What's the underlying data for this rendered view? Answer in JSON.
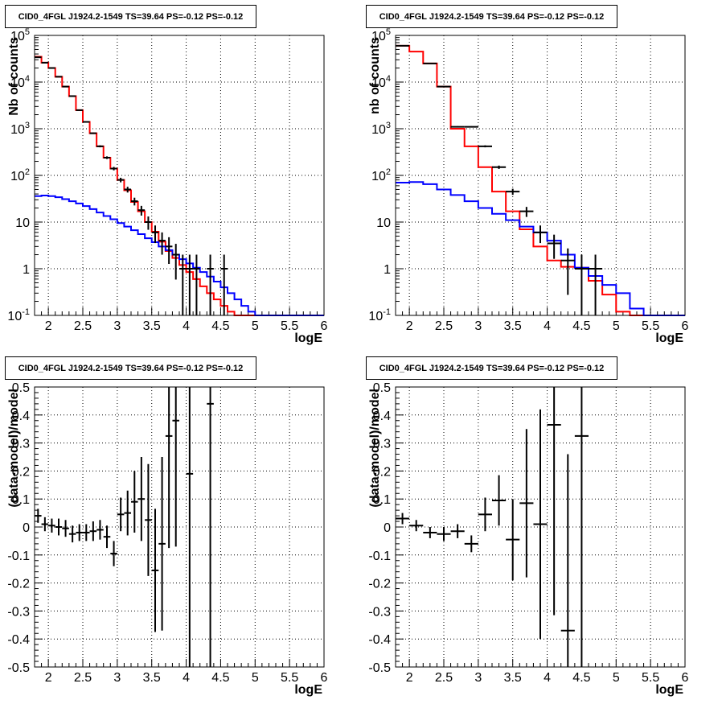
{
  "pad_title": "CID0_4FGL J1924.2-1549 TS=39.64 PS=-0.12 PS=-0.12",
  "colors": {
    "model_total": "#ff0000",
    "model_background": "#0000ff",
    "data": "#000000"
  },
  "chart_data": [
    {
      "id": "counts_fine",
      "type": "line",
      "title": "CID0_4FGL J1924.2-1549 TS=39.64 PS=-0.12 PS=-0.12",
      "xlabel": "logE",
      "ylabel": "Nb of counts",
      "xlim": [
        1.8,
        6.0
      ],
      "ylim": [
        0.1,
        100000
      ],
      "log_y": true,
      "grid": true,
      "x_ticks": [
        "2",
        "2.5",
        "3",
        "3.5",
        "4",
        "4.5",
        "5",
        "5.5",
        "6"
      ],
      "y_ticks": [
        "10^-1",
        "1",
        "10",
        "10^2",
        "10^3",
        "10^4",
        "10^5"
      ],
      "bin_edges": [
        1.8,
        1.9,
        2.0,
        2.1,
        2.2,
        2.3,
        2.4,
        2.5,
        2.6,
        2.7,
        2.8,
        2.9,
        3.0,
        3.1,
        3.2,
        3.3,
        3.4,
        3.5,
        3.6,
        3.7,
        3.8,
        3.9,
        4.0,
        4.1,
        4.2,
        4.3,
        4.4,
        4.5,
        4.6,
        4.7,
        4.8,
        4.9,
        5.0,
        5.1,
        5.2,
        5.3,
        5.4,
        5.5,
        5.6,
        5.7,
        5.8,
        5.9,
        6.0
      ],
      "series": [
        {
          "name": "",
          "role": "total",
          "values": [
            35000,
            26000,
            20000,
            13000,
            8000,
            5000,
            2500,
            1400,
            800,
            420,
            240,
            140,
            80,
            48,
            27,
            17,
            10,
            6.2,
            3.8,
            2.4,
            1.7,
            1.2,
            0.85,
            0.6,
            0.42,
            0.3,
            0.22,
            0.16,
            0.12,
            0.1,
            0.1,
            0.1,
            0.1,
            0.1,
            0.1,
            0.1,
            0.1,
            0.1,
            0.1,
            0.1,
            0.1,
            0.1
          ]
        },
        {
          "name": "",
          "role": "background",
          "values": [
            36,
            37,
            36,
            34,
            31,
            28,
            25,
            22,
            19,
            16,
            13.5,
            11.5,
            9.5,
            8,
            6.7,
            5.5,
            4.5,
            3.7,
            3,
            2.5,
            2,
            1.6,
            1.3,
            1.05,
            0.85,
            0.68,
            0.53,
            0.4,
            0.3,
            0.22,
            0.16,
            0.12,
            0.1,
            0.1,
            0.1,
            0.1,
            0.1,
            0.1,
            0.1,
            0.1,
            0.1,
            0.1
          ]
        }
      ],
      "points": [
        {
          "x": 1.85,
          "y": 34000
        },
        {
          "x": 1.95,
          "y": 26000
        },
        {
          "x": 2.05,
          "y": 20000
        },
        {
          "x": 2.15,
          "y": 13000
        },
        {
          "x": 2.25,
          "y": 8000
        },
        {
          "x": 2.35,
          "y": 5000
        },
        {
          "x": 2.45,
          "y": 2500
        },
        {
          "x": 2.55,
          "y": 1400
        },
        {
          "x": 2.65,
          "y": 800
        },
        {
          "x": 2.75,
          "y": 420
        },
        {
          "x": 2.85,
          "y": 240
        },
        {
          "x": 2.95,
          "y": 140
        },
        {
          "x": 3.05,
          "y": 80
        },
        {
          "x": 3.15,
          "y": 50
        },
        {
          "x": 3.25,
          "y": 28
        },
        {
          "x": 3.35,
          "y": 18
        },
        {
          "x": 3.45,
          "y": 10
        },
        {
          "x": 3.55,
          "y": 6
        },
        {
          "x": 3.65,
          "y": 4
        },
        {
          "x": 3.75,
          "y": 3
        },
        {
          "x": 3.85,
          "y": 2
        },
        {
          "x": 3.95,
          "y": 1
        },
        {
          "x": 4.05,
          "y": 1
        },
        {
          "x": 4.15,
          "y": 1
        },
        {
          "x": 4.35,
          "y": 1
        },
        {
          "x": 4.55,
          "y": 1
        }
      ],
      "x_error": 0.05
    },
    {
      "id": "counts_coarse",
      "type": "line",
      "title": "CID0_4FGL J1924.2-1549 TS=39.64 PS=-0.12 PS=-0.12",
      "xlabel": "logE",
      "ylabel": "nb of counts",
      "xlim": [
        1.8,
        6.0
      ],
      "ylim": [
        0.1,
        100000
      ],
      "log_y": true,
      "grid": true,
      "x_ticks": [
        "2",
        "2.5",
        "3",
        "3.5",
        "4",
        "4.5",
        "5",
        "5.5",
        "6"
      ],
      "y_ticks": [
        "10^-1",
        "1",
        "10",
        "10^2",
        "10^3",
        "10^4",
        "10^5"
      ],
      "bin_edges": [
        1.8,
        2.0,
        2.2,
        2.4,
        2.6,
        2.8,
        3.0,
        3.2,
        3.4,
        3.6,
        3.8,
        4.0,
        4.2,
        4.4,
        4.6,
        4.8,
        5.0,
        5.2,
        5.4,
        5.6,
        5.8,
        6.0
      ],
      "series": [
        {
          "name": "",
          "role": "total",
          "values": [
            60000,
            45000,
            25000,
            8000,
            1000,
            420,
            150,
            45,
            17,
            7,
            3,
            1.5,
            1.1,
            1.05,
            0.55,
            0.28,
            0.12,
            0.1,
            0.1,
            0.1,
            0.1
          ]
        },
        {
          "name": "",
          "role": "background",
          "values": [
            70,
            72,
            65,
            50,
            38,
            28,
            20,
            15,
            11,
            8,
            6,
            4,
            2,
            1.05,
            0.7,
            0.45,
            0.3,
            0.14,
            0.1,
            0.1,
            0.1
          ]
        }
      ],
      "points": [
        {
          "x": 1.9,
          "y": 60000
        },
        {
          "x": 2.3,
          "y": 25000
        },
        {
          "x": 2.5,
          "y": 8000
        },
        {
          "x": 2.7,
          "y": 1100
        },
        {
          "x": 2.9,
          "y": 1100
        },
        {
          "x": 3.1,
          "y": 420
        },
        {
          "x": 3.3,
          "y": 150
        },
        {
          "x": 3.5,
          "y": 45
        },
        {
          "x": 3.7,
          "y": 17
        },
        {
          "x": 3.9,
          "y": 6
        },
        {
          "x": 4.1,
          "y": 3.5
        },
        {
          "x": 4.3,
          "y": 1.5
        },
        {
          "x": 4.5,
          "y": 1
        },
        {
          "x": 4.7,
          "y": 1
        }
      ],
      "x_error": 0.1
    },
    {
      "id": "residual_fine",
      "type": "scatter",
      "title": "CID0_4FGL J1924.2-1549 TS=39.64 PS=-0.12 PS=-0.12",
      "xlabel": "logE",
      "ylabel": "(data-model)/model",
      "xlim": [
        1.8,
        6.0
      ],
      "ylim": [
        -0.5,
        0.5
      ],
      "log_y": false,
      "grid": true,
      "x_ticks": [
        "2",
        "2.5",
        "3",
        "3.5",
        "4",
        "4.5",
        "5",
        "5.5",
        "6"
      ],
      "y_ticks": [
        "-0.5",
        "-0.4",
        "-0.3",
        "-0.2",
        "-0.1",
        "0",
        "0.1",
        "0.2",
        "0.3",
        "0.4",
        "0.5"
      ],
      "x_error": 0.05,
      "points": [
        {
          "x": 1.85,
          "y": 0.04,
          "e": 0.025
        },
        {
          "x": 1.95,
          "y": 0.01,
          "e": 0.025
        },
        {
          "x": 2.05,
          "y": 0.005,
          "e": 0.025
        },
        {
          "x": 2.15,
          "y": 0.0,
          "e": 0.03
        },
        {
          "x": 2.25,
          "y": -0.005,
          "e": 0.03
        },
        {
          "x": 2.35,
          "y": -0.025,
          "e": 0.03
        },
        {
          "x": 2.45,
          "y": -0.02,
          "e": 0.03
        },
        {
          "x": 2.55,
          "y": -0.02,
          "e": 0.03
        },
        {
          "x": 2.65,
          "y": -0.015,
          "e": 0.035
        },
        {
          "x": 2.75,
          "y": -0.01,
          "e": 0.035
        },
        {
          "x": 2.85,
          "y": -0.035,
          "e": 0.04
        },
        {
          "x": 2.95,
          "y": -0.095,
          "e": 0.045
        },
        {
          "x": 3.05,
          "y": 0.045,
          "e": 0.06
        },
        {
          "x": 3.15,
          "y": 0.05,
          "e": 0.08
        },
        {
          "x": 3.25,
          "y": 0.09,
          "e": 0.11
        },
        {
          "x": 3.35,
          "y": 0.1,
          "e": 0.15
        },
        {
          "x": 3.45,
          "y": 0.025,
          "e": 0.2
        },
        {
          "x": 3.55,
          "y": -0.155,
          "e": 0.22
        },
        {
          "x": 3.65,
          "y": -0.06,
          "e": 0.31
        },
        {
          "x": 3.75,
          "y": 0.325,
          "e": 0.4
        },
        {
          "x": 3.85,
          "y": 0.38,
          "e": 0.45
        },
        {
          "x": 4.05,
          "y": 0.19,
          "e": 0.8
        },
        {
          "x": 4.35,
          "y": 0.44,
          "e": 0.95
        }
      ]
    },
    {
      "id": "residual_coarse",
      "type": "scatter",
      "title": "CID0_4FGL J1924.2-1549 TS=39.64 PS=-0.12 PS=-0.12",
      "xlabel": "logE",
      "ylabel": "(data-model)/model",
      "xlim": [
        1.8,
        6.0
      ],
      "ylim": [
        -0.5,
        0.5
      ],
      "log_y": false,
      "grid": true,
      "x_ticks": [
        "2",
        "2.5",
        "3",
        "3.5",
        "4",
        "4.5",
        "5",
        "5.5",
        "6"
      ],
      "y_ticks": [
        "-0.5",
        "-0.4",
        "-0.3",
        "-0.2",
        "-0.1",
        "0",
        "0.1",
        "0.2",
        "0.3",
        "0.4",
        "0.5"
      ],
      "x_error": 0.1,
      "points": [
        {
          "x": 1.9,
          "y": 0.03,
          "e": 0.02
        },
        {
          "x": 2.1,
          "y": 0.005,
          "e": 0.02
        },
        {
          "x": 2.3,
          "y": -0.02,
          "e": 0.02
        },
        {
          "x": 2.5,
          "y": -0.025,
          "e": 0.025
        },
        {
          "x": 2.7,
          "y": -0.015,
          "e": 0.025
        },
        {
          "x": 2.9,
          "y": -0.06,
          "e": 0.03
        },
        {
          "x": 3.1,
          "y": 0.045,
          "e": 0.06
        },
        {
          "x": 3.3,
          "y": 0.095,
          "e": 0.09
        },
        {
          "x": 3.5,
          "y": -0.045,
          "e": 0.145
        },
        {
          "x": 3.7,
          "y": 0.085,
          "e": 0.265
        },
        {
          "x": 3.9,
          "y": 0.01,
          "e": 0.41
        },
        {
          "x": 4.1,
          "y": 0.365,
          "e": 0.68
        },
        {
          "x": 4.3,
          "y": -0.37,
          "e": 0.63
        },
        {
          "x": 4.5,
          "y": 0.325,
          "e": 0.9
        }
      ]
    }
  ]
}
